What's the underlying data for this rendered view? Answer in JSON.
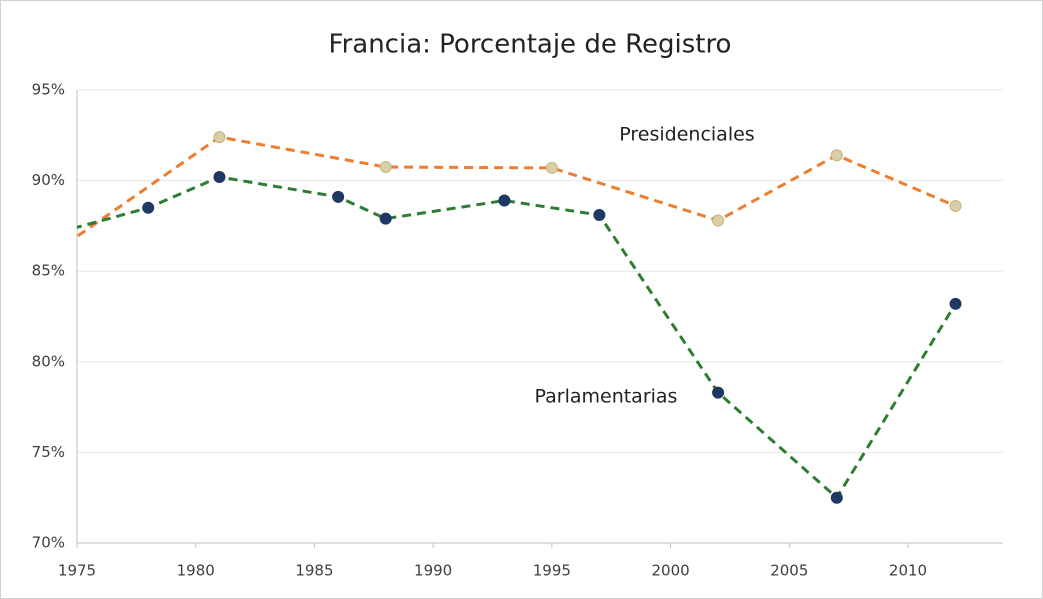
{
  "chart_data": {
    "type": "line",
    "title": "Francia: Porcentaje de Registro",
    "xlim": [
      1975,
      2014
    ],
    "xticks": [
      1975,
      1980,
      1985,
      1990,
      1995,
      2000,
      2005,
      2010
    ],
    "ylim": [
      70,
      95
    ],
    "yticks": [
      {
        "value": 70,
        "label": "70%"
      },
      {
        "value": 75,
        "label": "75%"
      },
      {
        "value": 80,
        "label": "80%"
      },
      {
        "value": 85,
        "label": "85%"
      },
      {
        "value": 90,
        "label": "90%"
      },
      {
        "value": 95,
        "label": "95%"
      }
    ],
    "grid": true,
    "series": [
      {
        "name": "Presidenciales",
        "color": "#ed7d31",
        "marker_color": "#d9cfa6",
        "x": [
          1974,
          1981,
          1988,
          1995,
          2002,
          2007,
          2012
        ],
        "values": [
          86.0,
          92.4,
          90.75,
          90.7,
          87.8,
          91.4,
          88.6
        ]
      },
      {
        "name": "Parlamentarias",
        "color": "#2e7d32",
        "marker_color": "#1f3864",
        "x": [
          1973,
          1978,
          1981,
          1986,
          1988,
          1993,
          1997,
          2002,
          2007,
          2012
        ],
        "values": [
          86.7,
          88.5,
          90.2,
          89.1,
          87.9,
          88.9,
          88.1,
          78.3,
          72.5,
          83.2
        ]
      }
    ]
  }
}
